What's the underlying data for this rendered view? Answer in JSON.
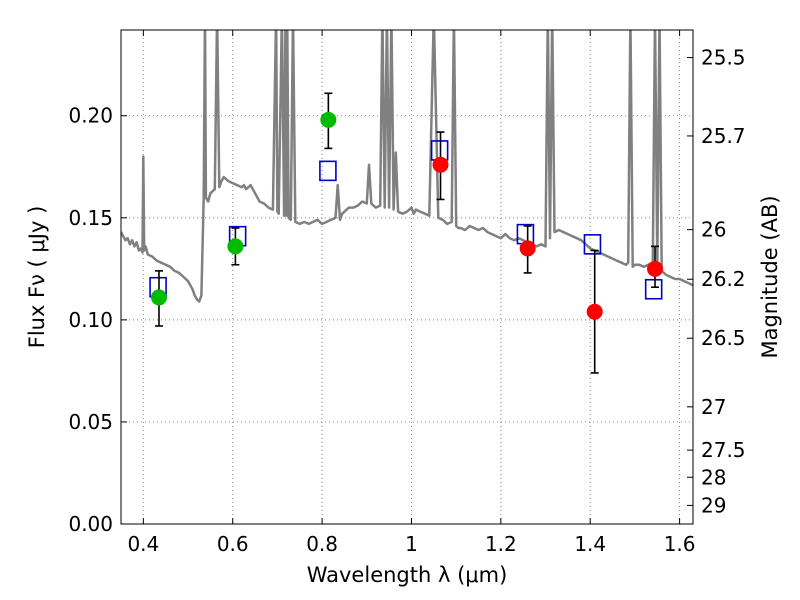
{
  "chart_data": {
    "type": "scatter",
    "title": "",
    "xlabel": "Wavelength  λ (μm)",
    "ylabel": "Flux  Fν  ( μJy )",
    "y2label": "Magnitude (AB)",
    "xlim": [
      0.35,
      1.63
    ],
    "ylim": [
      0.0,
      0.242
    ],
    "grid": true,
    "x_ticks": [
      0.4,
      0.6,
      0.8,
      1.0,
      1.2,
      1.4,
      1.6
    ],
    "x_tick_labels": [
      "0.4",
      "0.6",
      "0.8",
      "1",
      "1.2",
      "1.4",
      "1.6"
    ],
    "y_ticks": [
      0.0,
      0.05,
      0.1,
      0.15,
      0.2
    ],
    "y_tick_labels": [
      "0.00",
      "0.05",
      "0.10",
      "0.15",
      "0.20"
    ],
    "y2_ticks": [
      {
        "label": "25.5",
        "flux": 0.2285
      },
      {
        "label": "25.7",
        "flux": 0.1901
      },
      {
        "label": "26",
        "flux": 0.1442
      },
      {
        "label": "26.2",
        "flux": 0.1199
      },
      {
        "label": "26.5",
        "flux": 0.091
      },
      {
        "label": "27",
        "flux": 0.0574
      },
      {
        "label": "27.5",
        "flux": 0.0362
      },
      {
        "label": "28",
        "flux": 0.0229
      },
      {
        "label": "29",
        "flux": 0.0091
      }
    ],
    "model_spectrum": {
      "color": "#808080",
      "x": [
        0.35,
        0.355,
        0.36,
        0.365,
        0.37,
        0.375,
        0.38,
        0.385,
        0.39,
        0.395,
        0.398,
        0.4,
        0.402,
        0.405,
        0.41,
        0.42,
        0.43,
        0.44,
        0.45,
        0.46,
        0.47,
        0.48,
        0.49,
        0.5,
        0.505,
        0.51,
        0.515,
        0.52,
        0.525,
        0.53,
        0.535,
        0.538,
        0.54,
        0.545,
        0.55,
        0.56,
        0.565,
        0.57,
        0.575,
        0.58,
        0.59,
        0.6,
        0.61,
        0.62,
        0.625,
        0.63,
        0.635,
        0.64,
        0.645,
        0.65,
        0.655,
        0.66,
        0.67,
        0.68,
        0.69,
        0.697,
        0.7,
        0.703,
        0.71,
        0.715,
        0.718,
        0.72,
        0.722,
        0.725,
        0.73,
        0.735,
        0.74,
        0.75,
        0.76,
        0.77,
        0.78,
        0.79,
        0.8,
        0.81,
        0.82,
        0.83,
        0.835,
        0.84,
        0.845,
        0.85,
        0.86,
        0.87,
        0.88,
        0.89,
        0.9,
        0.905,
        0.91,
        0.915,
        0.92,
        0.93,
        0.935,
        0.94,
        0.945,
        0.95,
        0.955,
        0.96,
        0.965,
        0.97,
        0.98,
        0.99,
        1.0,
        1.005,
        1.01,
        1.02,
        1.03,
        1.04,
        1.05,
        1.06,
        1.07,
        1.08,
        1.09,
        1.095,
        1.1,
        1.105,
        1.11,
        1.12,
        1.13,
        1.14,
        1.15,
        1.16,
        1.17,
        1.18,
        1.19,
        1.2,
        1.21,
        1.22,
        1.23,
        1.24,
        1.25,
        1.26,
        1.27,
        1.28,
        1.29,
        1.3,
        1.305,
        1.31,
        1.315,
        1.32,
        1.33,
        1.34,
        1.35,
        1.36,
        1.37,
        1.38,
        1.39,
        1.4,
        1.41,
        1.42,
        1.43,
        1.44,
        1.45,
        1.46,
        1.47,
        1.48,
        1.485,
        1.49,
        1.495,
        1.5,
        1.51,
        1.52,
        1.53,
        1.54,
        1.545,
        1.55,
        1.555,
        1.56,
        1.57,
        1.58,
        1.59,
        1.6,
        1.61,
        1.62,
        1.63
      ],
      "y": [
        0.143,
        0.141,
        0.139,
        0.14,
        0.137,
        0.139,
        0.136,
        0.138,
        0.134,
        0.135,
        0.133,
        0.18,
        0.134,
        0.136,
        0.132,
        0.131,
        0.129,
        0.128,
        0.127,
        0.126,
        0.124,
        0.123,
        0.121,
        0.119,
        0.117,
        0.115,
        0.112,
        0.11,
        0.109,
        0.112,
        0.16,
        0.25,
        0.16,
        0.158,
        0.162,
        0.164,
        0.25,
        0.165,
        0.168,
        0.17,
        0.168,
        0.167,
        0.166,
        0.165,
        0.166,
        0.164,
        0.165,
        0.166,
        0.164,
        0.162,
        0.16,
        0.158,
        0.157,
        0.155,
        0.154,
        0.25,
        0.153,
        0.152,
        0.25,
        0.151,
        0.25,
        0.151,
        0.25,
        0.15,
        0.149,
        0.25,
        0.148,
        0.147,
        0.148,
        0.147,
        0.148,
        0.149,
        0.147,
        0.148,
        0.149,
        0.15,
        0.166,
        0.149,
        0.152,
        0.153,
        0.155,
        0.155,
        0.156,
        0.158,
        0.157,
        0.176,
        0.157,
        0.156,
        0.155,
        0.156,
        0.25,
        0.155,
        0.25,
        0.155,
        0.25,
        0.154,
        0.182,
        0.153,
        0.152,
        0.153,
        0.155,
        0.152,
        0.154,
        0.153,
        0.152,
        0.151,
        0.25,
        0.15,
        0.149,
        0.147,
        0.148,
        0.25,
        0.146,
        0.145,
        0.145,
        0.144,
        0.146,
        0.145,
        0.144,
        0.145,
        0.143,
        0.142,
        0.141,
        0.14,
        0.142,
        0.14,
        0.139,
        0.14,
        0.139,
        0.138,
        0.137,
        0.136,
        0.137,
        0.136,
        0.25,
        0.14,
        0.25,
        0.143,
        0.144,
        0.143,
        0.142,
        0.141,
        0.14,
        0.139,
        0.137,
        0.135,
        0.134,
        0.133,
        0.132,
        0.131,
        0.13,
        0.129,
        0.128,
        0.127,
        0.128,
        0.25,
        0.126,
        0.127,
        0.127,
        0.126,
        0.127,
        0.128,
        0.25,
        0.126,
        0.25,
        0.124,
        0.122,
        0.121,
        0.12,
        0.12,
        0.119,
        0.118,
        0.117
      ]
    },
    "photometry": [
      {
        "x": 0.435,
        "flux": 0.111,
        "err_low": 0.097,
        "err_high": 0.124,
        "color": "#00bb00"
      },
      {
        "x": 0.606,
        "flux": 0.136,
        "err_low": 0.127,
        "err_high": 0.145,
        "color": "#00bb00"
      },
      {
        "x": 0.814,
        "flux": 0.198,
        "err_low": 0.184,
        "err_high": 0.211,
        "color": "#00bb00"
      },
      {
        "x": 1.065,
        "flux": 0.176,
        "err_low": 0.159,
        "err_high": 0.192,
        "color": "#ff0000"
      },
      {
        "x": 1.26,
        "flux": 0.135,
        "err_low": 0.123,
        "err_high": 0.146,
        "color": "#ff0000"
      },
      {
        "x": 1.41,
        "flux": 0.104,
        "err_low": 0.074,
        "err_high": 0.134,
        "color": "#ff0000"
      },
      {
        "x": 1.545,
        "flux": 0.125,
        "err_low": 0.116,
        "err_high": 0.136,
        "color": "#ff0000"
      }
    ],
    "model_bands": {
      "color": "#0000cc",
      "x": [
        0.433,
        0.611,
        0.813,
        1.063,
        1.255,
        1.405,
        1.542
      ],
      "flux": [
        0.116,
        0.141,
        0.173,
        0.183,
        0.142,
        0.137,
        0.115
      ]
    }
  }
}
